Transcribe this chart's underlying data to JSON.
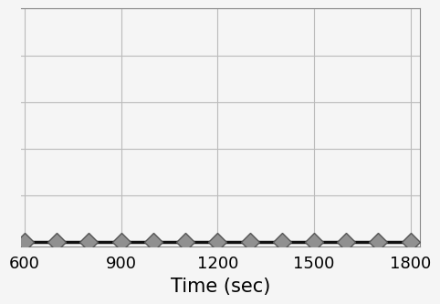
{
  "x_values": [
    600,
    700,
    800,
    900,
    1000,
    1100,
    1200,
    1300,
    1400,
    1500,
    1600,
    1700,
    1800
  ],
  "y_values": [
    0.0,
    0.0,
    0.0,
    0.0,
    0.0,
    0.0,
    0.0,
    0.0,
    0.0,
    0.0,
    0.0,
    0.0,
    0.0
  ],
  "line_color": "#111111",
  "marker_facecolor": "#909090",
  "marker_edgecolor": "#555555",
  "xlabel": "Time (sec)",
  "xlabel_fontsize": 15,
  "xticks": [
    600,
    900,
    1200,
    1500,
    1800
  ],
  "xtick_labels": [
    "600",
    "900",
    "1200",
    "1500",
    "1800"
  ],
  "xlim": [
    590,
    1830
  ],
  "ylim": [
    -0.02,
    1.0
  ],
  "yticks": [
    0.0,
    0.2,
    0.4,
    0.6,
    0.8,
    1.0
  ],
  "grid_color": "#bbbbbb",
  "grid_linewidth": 0.8,
  "background_color": "#f5f5f5",
  "tick_fontsize": 13,
  "line_width": 2.5,
  "marker_size": 10,
  "marker_edgewidth": 1.0,
  "left_margin_cut": true
}
